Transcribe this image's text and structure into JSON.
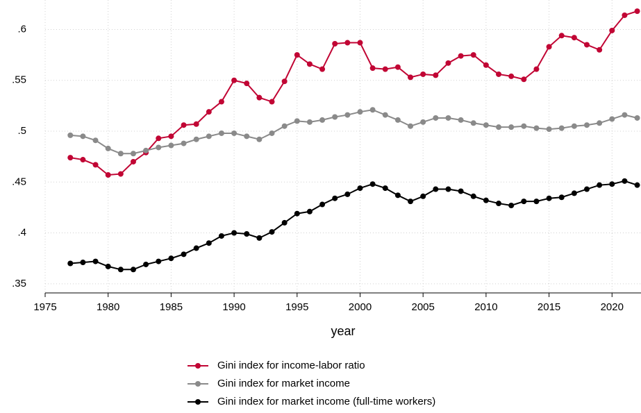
{
  "chart_data": {
    "type": "line",
    "x_label": "year",
    "x": [
      1977,
      1978,
      1979,
      1980,
      1981,
      1982,
      1983,
      1984,
      1985,
      1986,
      1987,
      1988,
      1989,
      1990,
      1991,
      1992,
      1993,
      1994,
      1995,
      1996,
      1997,
      1998,
      1999,
      2000,
      2001,
      2002,
      2003,
      2004,
      2005,
      2006,
      2007,
      2008,
      2009,
      2010,
      2011,
      2012,
      2013,
      2014,
      2015,
      2016,
      2017,
      2018,
      2019,
      2020,
      2021,
      2022
    ],
    "series": [
      {
        "name": "Gini index for income-labor ratio",
        "color": "#c10534",
        "values": [
          0.474,
          0.472,
          0.467,
          0.457,
          0.458,
          0.47,
          0.479,
          0.493,
          0.495,
          0.506,
          0.507,
          0.519,
          0.529,
          0.55,
          0.547,
          0.533,
          0.529,
          0.549,
          0.575,
          0.566,
          0.561,
          0.586,
          0.587,
          0.587,
          0.562,
          0.561,
          0.563,
          0.553,
          0.556,
          0.555,
          0.567,
          0.574,
          0.575,
          0.565,
          0.556,
          0.554,
          0.551,
          0.561,
          0.583,
          0.594,
          0.592,
          0.585,
          0.58,
          0.599,
          0.614,
          0.618
        ]
      },
      {
        "name": "Gini index for market income",
        "color": "#8a8a8a",
        "values": [
          0.496,
          0.495,
          0.491,
          0.483,
          0.478,
          0.478,
          0.481,
          0.484,
          0.486,
          0.488,
          0.492,
          0.495,
          0.498,
          0.498,
          0.495,
          0.492,
          0.498,
          0.505,
          0.51,
          0.509,
          0.511,
          0.514,
          0.516,
          0.519,
          0.521,
          0.516,
          0.511,
          0.505,
          0.509,
          0.513,
          0.513,
          0.511,
          0.508,
          0.506,
          0.504,
          0.504,
          0.505,
          0.503,
          0.502,
          0.503,
          0.505,
          0.506,
          0.508,
          0.512,
          0.516,
          0.513
        ]
      },
      {
        "name": "Gini index for market income (full-time workers)",
        "color": "#000000",
        "values": [
          0.37,
          0.371,
          0.372,
          0.367,
          0.364,
          0.364,
          0.369,
          0.372,
          0.375,
          0.379,
          0.385,
          0.39,
          0.397,
          0.4,
          0.399,
          0.395,
          0.401,
          0.41,
          0.419,
          0.421,
          0.428,
          0.434,
          0.438,
          0.444,
          0.448,
          0.444,
          0.437,
          0.431,
          0.436,
          0.443,
          0.443,
          0.441,
          0.436,
          0.432,
          0.429,
          0.427,
          0.431,
          0.431,
          0.434,
          0.435,
          0.439,
          0.443,
          0.447,
          0.448,
          0.451,
          0.447
        ]
      }
    ],
    "xlim": [
      1975,
      2022.3
    ],
    "ylim": [
      0.341,
      0.629
    ],
    "xticks": [
      1975,
      1980,
      1985,
      1990,
      1995,
      2000,
      2005,
      2010,
      2015,
      2020
    ],
    "yticks": [
      {
        "value": 0.35,
        "label": ".35"
      },
      {
        "value": 0.4,
        "label": ".4"
      },
      {
        "value": 0.45,
        "label": ".45"
      },
      {
        "value": 0.5,
        "label": ".5"
      },
      {
        "value": 0.55,
        "label": ".55"
      },
      {
        "value": 0.6,
        "label": ".6"
      }
    ],
    "grid": true,
    "legend": "bottom"
  }
}
